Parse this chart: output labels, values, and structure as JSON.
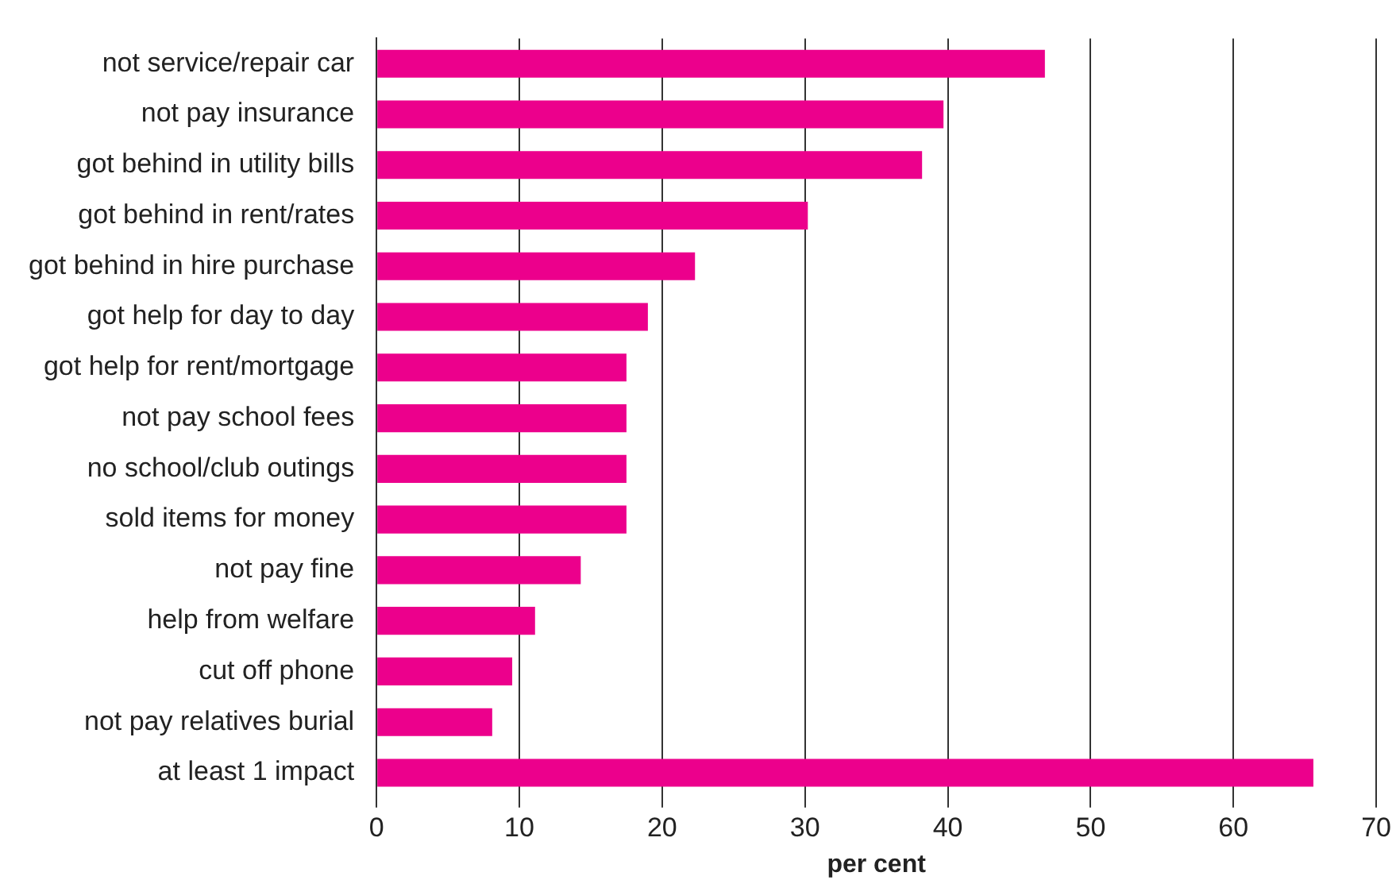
{
  "chart_data": {
    "type": "bar",
    "orientation": "horizontal",
    "xlabel": "per cent",
    "categories": [
      "not service/repair car",
      "not pay insurance",
      "got behind in utility bills",
      "got behind in rent/rates",
      "got behind in hire purchase",
      "got help for day to day",
      "got help for rent/mortgage",
      "not pay school fees",
      "no school/club outings",
      "sold items for money",
      "not pay fine",
      "help from welfare",
      "cut off phone",
      "not pay relatives burial",
      "at least 1 impact"
    ],
    "values": [
      46.8,
      39.7,
      38.2,
      30.2,
      22.3,
      19.0,
      17.5,
      17.5,
      17.5,
      17.5,
      14.3,
      11.1,
      9.5,
      8.1,
      65.6
    ],
    "color": "#ec008c",
    "xlim": [
      0,
      70
    ],
    "xticks": [
      0,
      10,
      20,
      30,
      40,
      50,
      60,
      70
    ],
    "grid": "x",
    "legend": false
  }
}
